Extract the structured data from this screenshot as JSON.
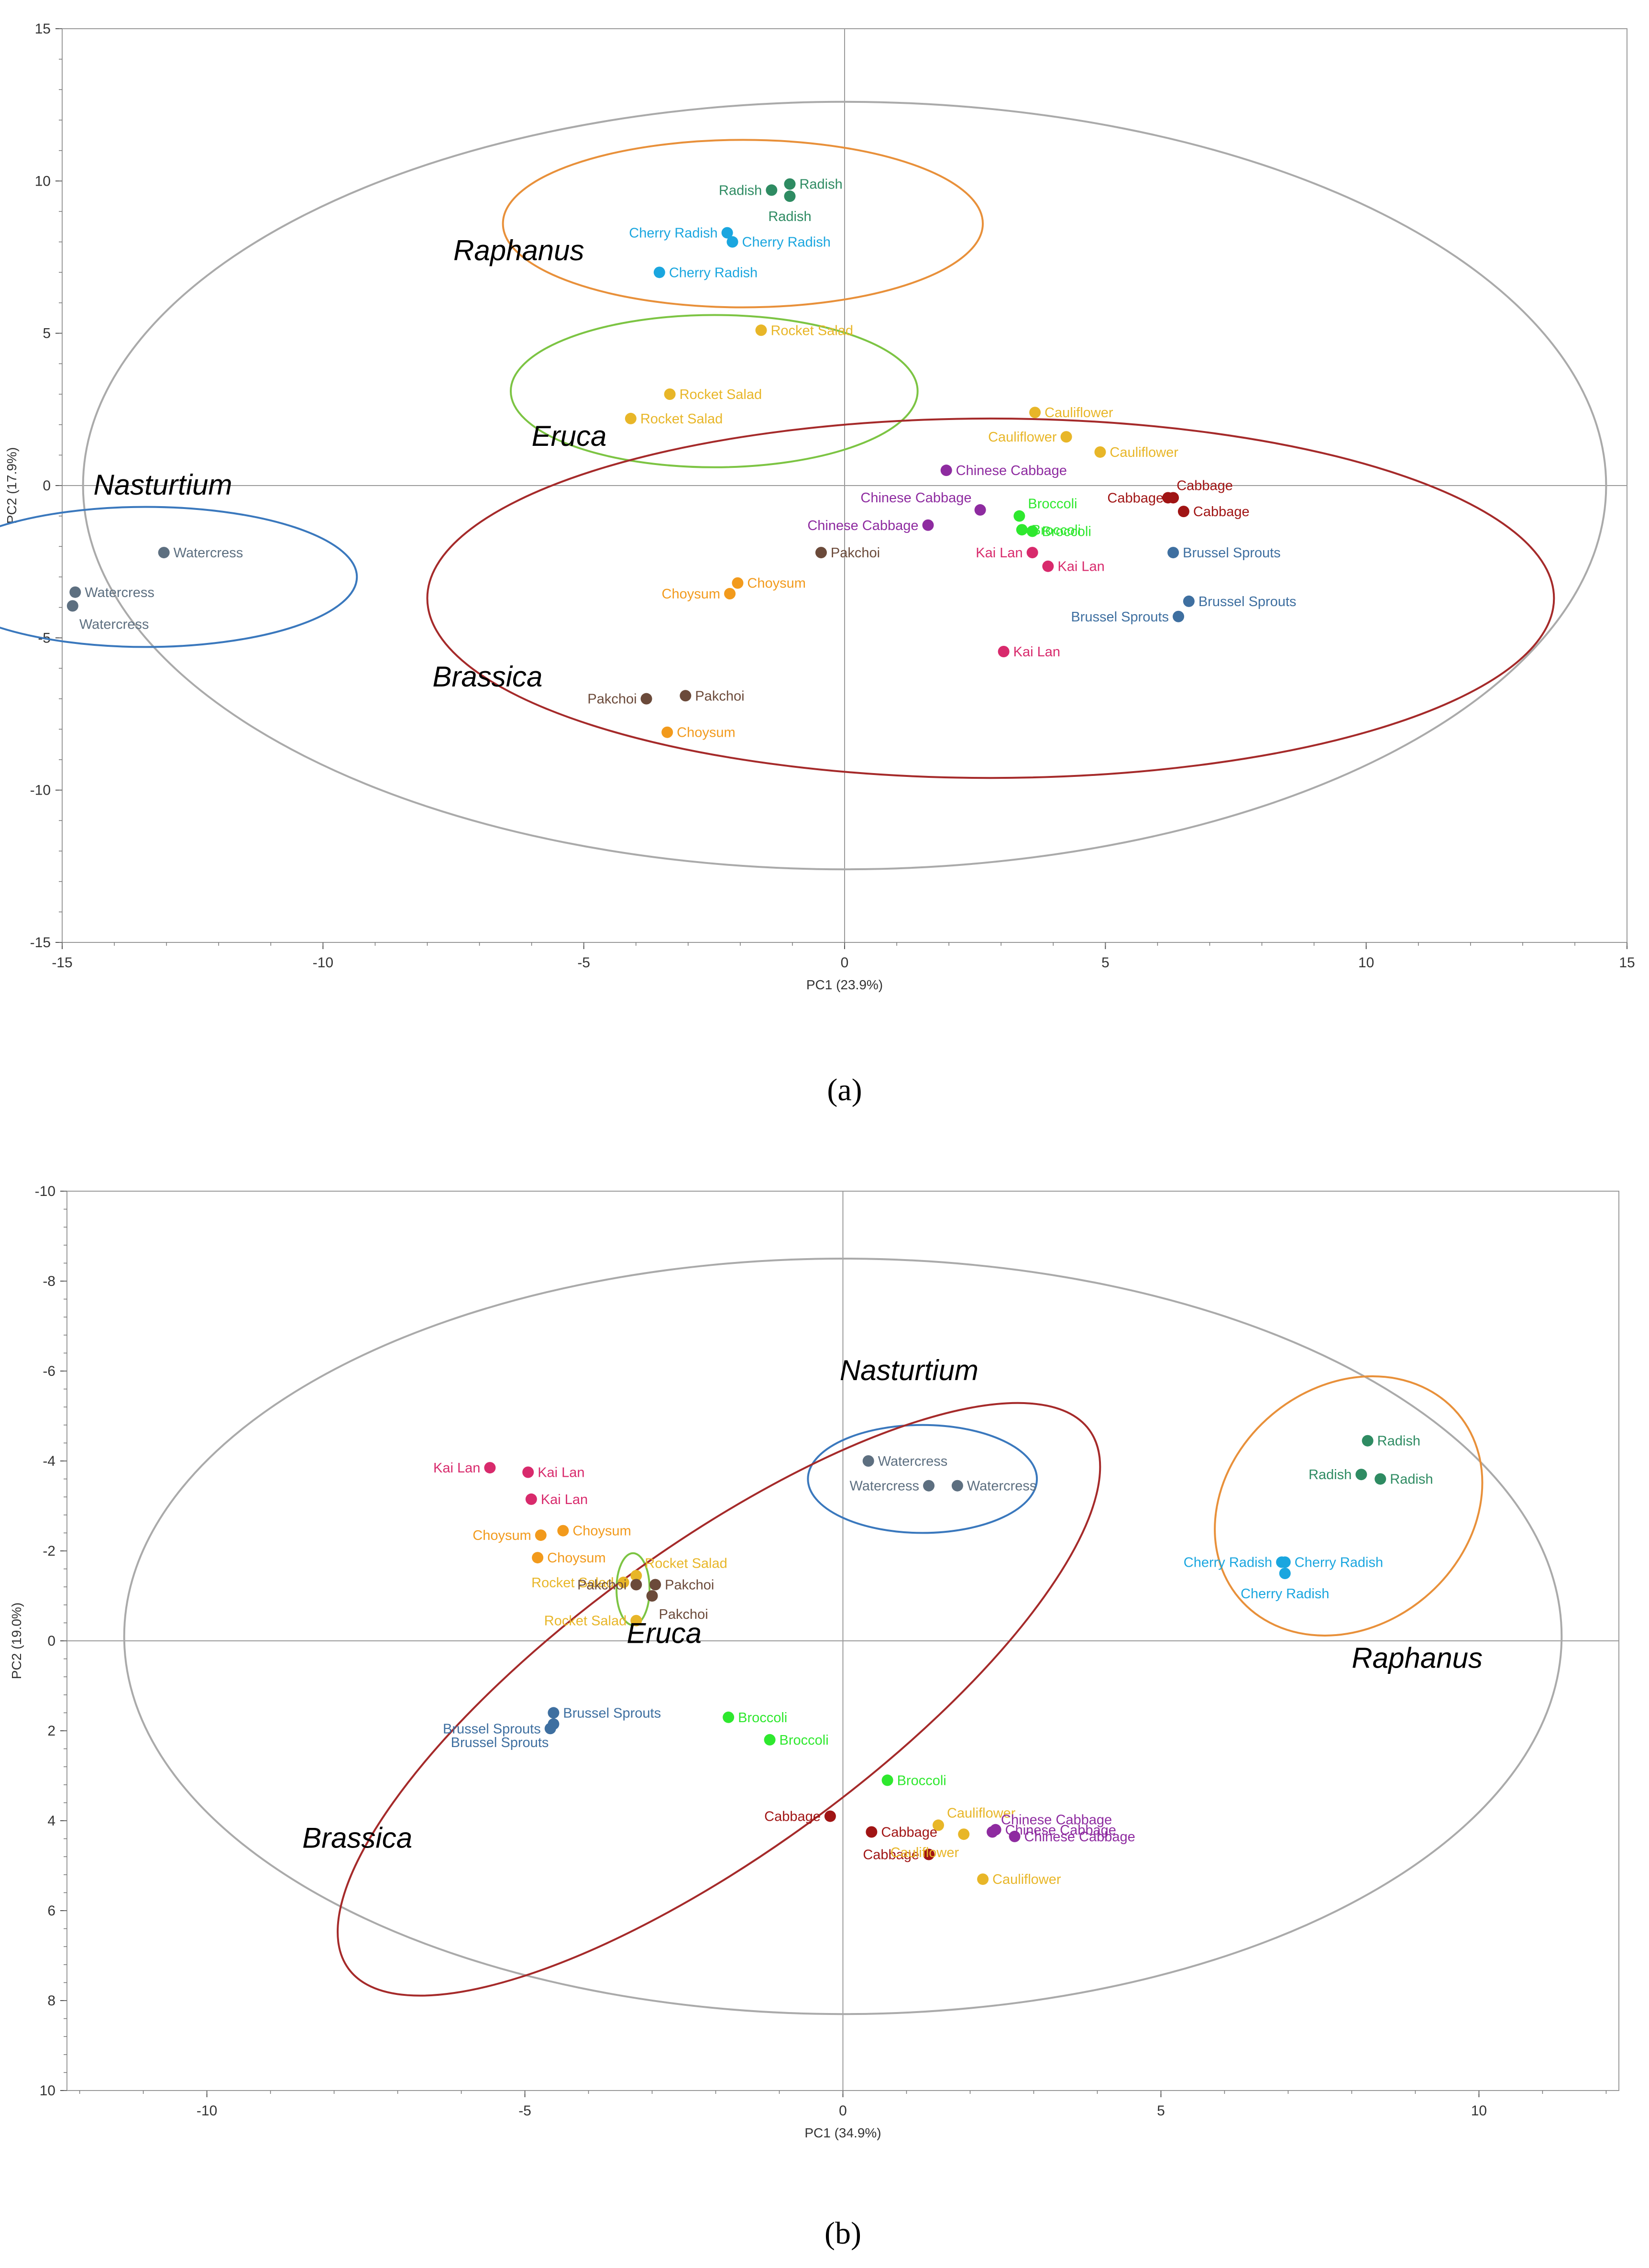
{
  "colors": {
    "Radish": "#2e8b62",
    "Cherry Radish": "#1aa6df",
    "Rocket Salad": "#e8b628",
    "Cauliflower": "#e8b628",
    "Chinese Cabbage": "#8e2ba0",
    "Broccoli": "#2ee82e",
    "Cabbage": "#a01414",
    "Kai Lan": "#d82a6c",
    "Brussel Sprouts": "#3e6fa0",
    "Pakchoi": "#6b4a3a",
    "Choysum": "#f29a1c",
    "Watercress": "#5d6f80",
    "ellipse_all": "#aaaaaa",
    "Brassica": "#a52a2a",
    "Raphanus": "#e8903a",
    "Eruca": "#7cc443",
    "Nasturtium": "#3a78bd"
  },
  "chart_data": [
    {
      "type": "scatter",
      "panel_label": "(a)",
      "xlabel": "PC1 (23.9%)",
      "ylabel": "PC2 (17.9%)",
      "xlim": [
        -15,
        15
      ],
      "ylim": [
        -15,
        15
      ],
      "y_inverted": false,
      "xticks": [
        -15,
        -10,
        -5,
        0,
        5,
        10,
        15
      ],
      "yticks": [
        -15,
        -10,
        -5,
        0,
        5,
        10,
        15
      ],
      "points": [
        {
          "name": "Radish",
          "x": -1.4,
          "y": 9.7,
          "label_side": "left"
        },
        {
          "name": "Radish",
          "x": -1.05,
          "y": 9.9,
          "label_side": "right"
        },
        {
          "name": "Radish",
          "x": -1.05,
          "y": 9.5,
          "label_side": "below"
        },
        {
          "name": "Cherry Radish",
          "x": -2.25,
          "y": 8.3,
          "label_side": "left"
        },
        {
          "name": "Cherry Radish",
          "x": -2.15,
          "y": 8.0,
          "label_side": "right"
        },
        {
          "name": "Cherry Radish",
          "x": -3.55,
          "y": 7.0,
          "label_side": "right"
        },
        {
          "name": "Rocket Salad",
          "x": -1.6,
          "y": 5.1,
          "label_side": "right"
        },
        {
          "name": "Rocket Salad",
          "x": -3.35,
          "y": 3.0,
          "label_side": "right"
        },
        {
          "name": "Rocket Salad",
          "x": -4.1,
          "y": 2.2,
          "label_side": "right"
        },
        {
          "name": "Cauliflower",
          "x": 3.65,
          "y": 2.4,
          "label_side": "right"
        },
        {
          "name": "Cauliflower",
          "x": 4.25,
          "y": 1.6,
          "label_side": "left"
        },
        {
          "name": "Cauliflower",
          "x": 4.9,
          "y": 1.1,
          "label_side": "right"
        },
        {
          "name": "Chinese Cabbage",
          "x": 1.95,
          "y": 0.5,
          "label_side": "right"
        },
        {
          "name": "Chinese Cabbage",
          "x": 2.6,
          "y": -0.8,
          "label_side": "upleft"
        },
        {
          "name": "Chinese Cabbage",
          "x": 1.6,
          "y": -1.3,
          "label_side": "left"
        },
        {
          "name": "Broccoli",
          "x": 3.35,
          "y": -1.0,
          "label_side": "upright"
        },
        {
          "name": "Broccoli",
          "x": 3.4,
          "y": -1.45,
          "label_side": "right"
        },
        {
          "name": "Broccoli",
          "x": 3.6,
          "y": -1.5,
          "label_side": "right"
        },
        {
          "name": "Cabbage",
          "x": 6.2,
          "y": -0.4,
          "label_side": "upright"
        },
        {
          "name": "Cabbage",
          "x": 6.3,
          "y": -0.4,
          "label_side": "left"
        },
        {
          "name": "Cabbage",
          "x": 6.5,
          "y": -0.85,
          "label_side": "right"
        },
        {
          "name": "Kai Lan",
          "x": 3.6,
          "y": -2.2,
          "label_side": "left"
        },
        {
          "name": "Kai Lan",
          "x": 3.9,
          "y": -2.65,
          "label_side": "right"
        },
        {
          "name": "Kai Lan",
          "x": 3.05,
          "y": -5.45,
          "label_side": "right"
        },
        {
          "name": "Brussel Sprouts",
          "x": 6.3,
          "y": -2.2,
          "label_side": "right"
        },
        {
          "name": "Brussel Sprouts",
          "x": 6.6,
          "y": -3.8,
          "label_side": "right"
        },
        {
          "name": "Brussel Sprouts",
          "x": 6.4,
          "y": -4.3,
          "label_side": "left"
        },
        {
          "name": "Pakchoi",
          "x": -0.45,
          "y": -2.2,
          "label_side": "right"
        },
        {
          "name": "Pakchoi",
          "x": -3.8,
          "y": -7.0,
          "label_side": "left"
        },
        {
          "name": "Pakchoi",
          "x": -3.05,
          "y": -6.9,
          "label_side": "right"
        },
        {
          "name": "Choysum",
          "x": -2.05,
          "y": -3.2,
          "label_side": "right"
        },
        {
          "name": "Choysum",
          "x": -2.2,
          "y": -3.55,
          "label_side": "left"
        },
        {
          "name": "Choysum",
          "x": -3.4,
          "y": -8.1,
          "label_side": "right"
        },
        {
          "name": "Watercress",
          "x": -13.05,
          "y": -2.2,
          "label_side": "right"
        },
        {
          "name": "Watercress",
          "x": -14.75,
          "y": -3.5,
          "label_side": "right"
        },
        {
          "name": "Watercress",
          "x": -14.8,
          "y": -3.95,
          "label_side": "belowright"
        }
      ],
      "ellipses": [
        {
          "group": "all",
          "cx": 0.0,
          "cy": 0.0,
          "rx": 14.6,
          "ry": 12.6
        },
        {
          "group": "Raphanus",
          "cx": -1.95,
          "cy": 8.6,
          "rx": 4.6,
          "ry": 2.75
        },
        {
          "group": "Eruca",
          "cx": -2.5,
          "cy": 3.1,
          "rx": 3.9,
          "ry": 2.5
        },
        {
          "group": "Brassica",
          "cx": 2.8,
          "cy": -3.7,
          "rx": 10.8,
          "ry": 5.9
        },
        {
          "group": "Nasturtium",
          "cx": -13.4,
          "cy": -3.0,
          "rx": 4.05,
          "ry": 2.3
        }
      ],
      "group_labels": [
        {
          "text": "Raphanus",
          "x": -7.5,
          "y": 7.4
        },
        {
          "text": "Eruca",
          "x": -6.0,
          "y": 1.3
        },
        {
          "text": "Nasturtium",
          "x": -14.4,
          "y": -0.3
        },
        {
          "text": "Brassica",
          "x": -7.9,
          "y": -6.6
        }
      ]
    },
    {
      "type": "scatter",
      "panel_label": "(b)",
      "xlabel": "PC1 (34.9%)",
      "ylabel": "PC2 (19.0%)",
      "xlim": [
        -12.2,
        12.2
      ],
      "ylim": [
        -10,
        10
      ],
      "y_inverted": true,
      "xticks": [
        -10,
        -5,
        0,
        5,
        10
      ],
      "yticks": [
        -10,
        -8,
        -6,
        -4,
        -2,
        0,
        2,
        4,
        6,
        8,
        10
      ],
      "points": [
        {
          "name": "Radish",
          "x": 8.25,
          "y": -4.45,
          "label_side": "right"
        },
        {
          "name": "Radish",
          "x": 8.15,
          "y": -3.7,
          "label_side": "left"
        },
        {
          "name": "Radish",
          "x": 8.45,
          "y": -3.6,
          "label_side": "right"
        },
        {
          "name": "Cherry Radish",
          "x": 6.9,
          "y": -1.75,
          "label_side": "left"
        },
        {
          "name": "Cherry Radish",
          "x": 6.95,
          "y": -1.75,
          "label_side": "right"
        },
        {
          "name": "Cherry Radish",
          "x": 6.95,
          "y": -1.5,
          "label_side": "below"
        },
        {
          "name": "Watercress",
          "x": 0.4,
          "y": -4.0,
          "label_side": "right"
        },
        {
          "name": "Watercress",
          "x": 1.35,
          "y": -3.45,
          "label_side": "left"
        },
        {
          "name": "Watercress",
          "x": 1.8,
          "y": -3.45,
          "label_side": "right"
        },
        {
          "name": "Kai Lan",
          "x": -5.55,
          "y": -3.85,
          "label_side": "left"
        },
        {
          "name": "Kai Lan",
          "x": -4.95,
          "y": -3.75,
          "label_side": "right"
        },
        {
          "name": "Kai Lan",
          "x": -4.9,
          "y": -3.15,
          "label_side": "right"
        },
        {
          "name": "Choysum",
          "x": -4.75,
          "y": -2.35,
          "label_side": "left"
        },
        {
          "name": "Choysum",
          "x": -4.4,
          "y": -2.45,
          "label_side": "right"
        },
        {
          "name": "Choysum",
          "x": -4.8,
          "y": -1.85,
          "label_side": "right"
        },
        {
          "name": "Rocket Salad",
          "x": -3.25,
          "y": -1.45,
          "label_side": "upright"
        },
        {
          "name": "Rocket Salad",
          "x": -3.45,
          "y": -1.3,
          "label_side": "left"
        },
        {
          "name": "Rocket Salad",
          "x": -3.25,
          "y": -0.45,
          "label_side": "left"
        },
        {
          "name": "Pakchoi",
          "x": -3.25,
          "y": -1.25,
          "label_side": "left"
        },
        {
          "name": "Pakchoi",
          "x": -2.95,
          "y": -1.25,
          "label_side": "right"
        },
        {
          "name": "Pakchoi",
          "x": -3.0,
          "y": -1.0,
          "label_side": "belowright"
        },
        {
          "name": "Brussel Sprouts",
          "x": -4.55,
          "y": 1.6,
          "label_side": "right"
        },
        {
          "name": "Brussel Sprouts",
          "x": -4.6,
          "y": 1.95,
          "label_side": "left"
        },
        {
          "name": "Brussel Sprouts",
          "x": -4.55,
          "y": 1.85,
          "label_side": "belowleft"
        },
        {
          "name": "Broccoli",
          "x": -1.8,
          "y": 1.7,
          "label_side": "right"
        },
        {
          "name": "Broccoli",
          "x": -1.15,
          "y": 2.2,
          "label_side": "right"
        },
        {
          "name": "Broccoli",
          "x": 0.7,
          "y": 3.1,
          "label_side": "right"
        },
        {
          "name": "Cabbage",
          "x": -0.2,
          "y": 3.9,
          "label_side": "left"
        },
        {
          "name": "Cabbage",
          "x": 0.45,
          "y": 4.25,
          "label_side": "right"
        },
        {
          "name": "Cabbage",
          "x": 1.35,
          "y": 4.75,
          "label_side": "left"
        },
        {
          "name": "Cauliflower",
          "x": 1.5,
          "y": 4.1,
          "label_side": "upright"
        },
        {
          "name": "Cauliflower",
          "x": 1.9,
          "y": 4.3,
          "label_side": "belowleft"
        },
        {
          "name": "Cauliflower",
          "x": 2.2,
          "y": 5.3,
          "label_side": "right"
        },
        {
          "name": "Chinese Cabbage",
          "x": 2.35,
          "y": 4.25,
          "label_side": "upright"
        },
        {
          "name": "Chinese Cabbage",
          "x": 2.4,
          "y": 4.2,
          "label_side": "right"
        },
        {
          "name": "Chinese Cabbage",
          "x": 2.7,
          "y": 4.35,
          "label_side": "right"
        }
      ],
      "ellipses": [
        {
          "group": "all",
          "cx": 0.0,
          "cy": -0.1,
          "rx": 11.3,
          "ry": 8.4
        },
        {
          "group": "Nasturtium",
          "cx": 1.25,
          "cy": -3.6,
          "rx": 1.8,
          "ry": 1.2
        },
        {
          "group": "Raphanus",
          "cx": 7.95,
          "cy": -3.0,
          "rx": 2.25,
          "ry": 2.65,
          "angle": 40
        },
        {
          "group": "Eruca",
          "cx": -3.3,
          "cy": -1.15,
          "rx": 0.26,
          "ry": 0.8
        },
        {
          "group": "Brassica",
          "cx": -1.95,
          "cy": 1.3,
          "rx": 7.2,
          "ry": 3.4,
          "angle": 36
        }
      ],
      "group_labels": [
        {
          "text": "Nasturtium",
          "x": -0.05,
          "y": -5.8
        },
        {
          "text": "Eruca",
          "x": -3.4,
          "y": 0.05
        },
        {
          "text": "Raphanus",
          "x": 8.0,
          "y": 0.6
        },
        {
          "text": "Brassica",
          "x": -8.5,
          "y": 4.6
        }
      ]
    }
  ]
}
